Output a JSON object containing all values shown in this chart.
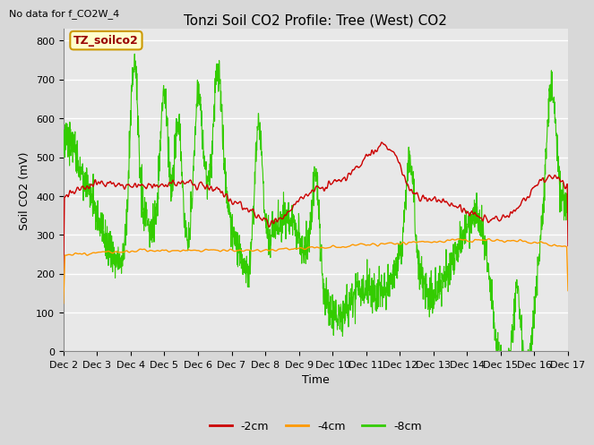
{
  "title": "Tonzi Soil CO2 Profile: Tree (West) CO2",
  "subtitle": "No data for f_CO2W_4",
  "ylabel": "Soil CO2 (mV)",
  "xlabel": "Time",
  "legend_label": "TZ_soilco2",
  "ylim": [
    0,
    830
  ],
  "yticks": [
    0,
    100,
    200,
    300,
    400,
    500,
    600,
    700,
    800
  ],
  "xtick_labels": [
    "Dec 2",
    "Dec 3",
    "Dec 4",
    "Dec 5",
    "Dec 6",
    "Dec 7",
    "Dec 8",
    "Dec 9",
    "Dec 10",
    "Dec 11",
    "Dec 12",
    "Dec 13",
    "Dec 14",
    "Dec 15",
    "Dec 16",
    "Dec 17"
  ],
  "line_2cm_color": "#cc0000",
  "line_4cm_color": "#ff9900",
  "line_8cm_color": "#33cc00",
  "background_color": "#d8d8d8",
  "plot_bg_color": "#e8e8e8",
  "legend_box_color": "#ffffcc",
  "legend_box_edge": "#cc9900",
  "legend_text_color": "#990000",
  "grid_color": "#ffffff",
  "title_fontsize": 11,
  "axis_fontsize": 9,
  "tick_fontsize": 8
}
